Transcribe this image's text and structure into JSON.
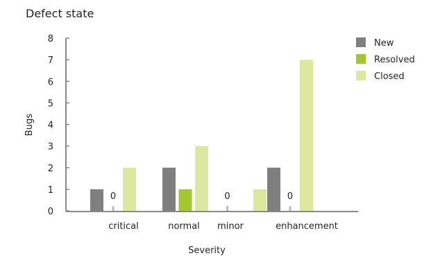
{
  "chart_data": {
    "type": "bar",
    "title": "Defect state",
    "xlabel": "Severity",
    "ylabel": "Bugs",
    "ylim": [
      0,
      8
    ],
    "yticks": [
      0,
      1,
      2,
      3,
      4,
      5,
      6,
      7,
      8
    ],
    "grid": false,
    "legend_position": "top-right",
    "categories": [
      "critical",
      "normal",
      "minor",
      "enhancement"
    ],
    "series": [
      {
        "name": "New",
        "color": "#7f7f7f",
        "values": [
          1,
          2,
          0,
          2
        ]
      },
      {
        "name": "Resolved",
        "color": "#a4c62e",
        "values": [
          0,
          1,
          0,
          0
        ]
      },
      {
        "name": "Closed",
        "color": "#dbe89e",
        "values": [
          2,
          3,
          1,
          7
        ]
      }
    ],
    "zero_labels": [
      {
        "text": "0",
        "category": "critical",
        "series": "Resolved"
      },
      {
        "text": "0",
        "category": "minor",
        "series": "New"
      },
      {
        "text": "0",
        "category": "enhancement",
        "series": "Resolved"
      }
    ]
  }
}
